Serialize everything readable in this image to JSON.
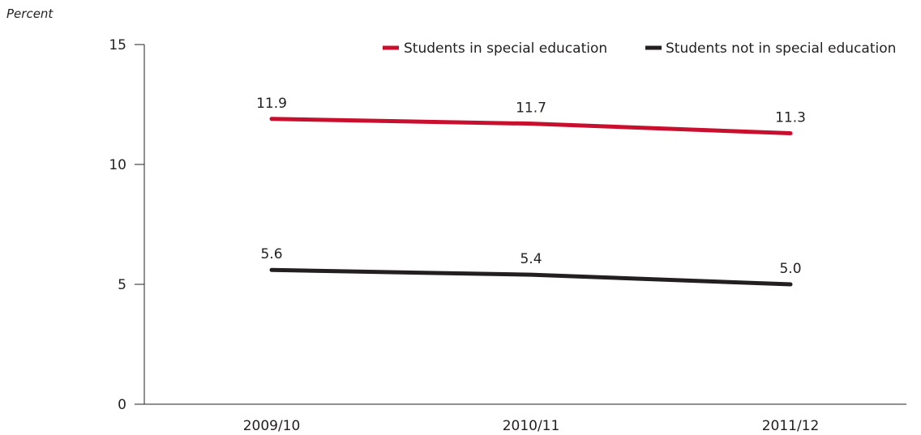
{
  "chart_data": {
    "type": "line",
    "categories": [
      "2009/10",
      "2010/11",
      "2011/12"
    ],
    "series": [
      {
        "name": "Students in special education",
        "values": [
          11.9,
          11.7,
          11.3
        ],
        "labels": [
          "11.9",
          "11.7",
          "11.3"
        ],
        "color": "#c8102e"
      },
      {
        "name": "Students not in special education",
        "values": [
          5.6,
          5.4,
          5.0
        ],
        "labels": [
          "5.6",
          "5.4",
          "5.0"
        ],
        "color": "#231f20"
      }
    ],
    "ylabel": "Percent",
    "xlabel": "",
    "ylim": [
      0,
      15
    ],
    "yticks": [
      0,
      5,
      10,
      15
    ],
    "ytick_labels": [
      "0",
      "5",
      "10",
      "15"
    ],
    "grid": false,
    "legend_position": "top-right"
  }
}
